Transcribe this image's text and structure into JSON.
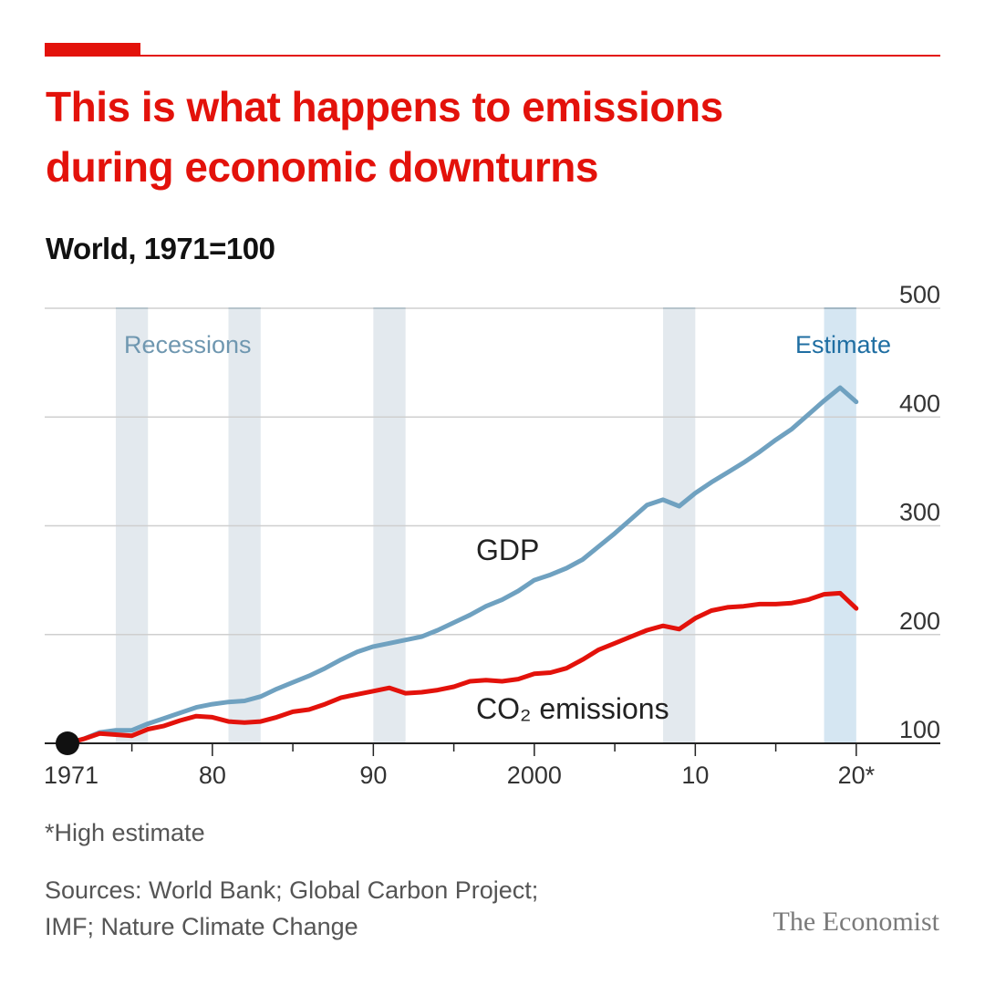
{
  "title_line1": "This is what happens to emissions",
  "title_line2": "during economic downturns",
  "subtitle": "World, 1971=100",
  "footnote": "*High estimate",
  "sources_line1": "Sources: World Bank; Global Carbon Project;",
  "sources_line2": "IMF; Nature Climate Change",
  "brand": "The Economist",
  "colors": {
    "accent": "#e3120b",
    "gdp": "#6fa1c0",
    "co2": "#e3120b",
    "recession_band": "#e3e9ee",
    "estimate_band": "#d5e6f2",
    "recession_label": "#6f97b0",
    "estimate_label": "#1f6ea2"
  },
  "chart_data": {
    "type": "line",
    "xlim": [
      1970,
      2021
    ],
    "ylim": [
      100,
      500
    ],
    "yticks": [
      100,
      200,
      300,
      400,
      500
    ],
    "xticks": [
      {
        "value": 1971,
        "label": "1971"
      },
      {
        "value": 1980,
        "label": "80"
      },
      {
        "value": 1990,
        "label": "90"
      },
      {
        "value": 2000,
        "label": "2000"
      },
      {
        "value": 2010,
        "label": "10"
      },
      {
        "value": 2020,
        "label": "20*"
      }
    ],
    "grid": true,
    "recessions_label": "Recessions",
    "recessions": [
      [
        1974,
        1976
      ],
      [
        1981,
        1983
      ],
      [
        1990,
        1992
      ],
      [
        2008,
        2010
      ]
    ],
    "estimate_label": "Estimate",
    "estimate": [
      2018,
      2020
    ],
    "start_marker": {
      "x": 1971,
      "y": 100
    },
    "series": [
      {
        "name": "GDP",
        "x": [
          1971,
          1972,
          1973,
          1974,
          1975,
          1976,
          1977,
          1978,
          1979,
          1980,
          1981,
          1982,
          1983,
          1984,
          1985,
          1986,
          1987,
          1988,
          1989,
          1990,
          1991,
          1992,
          1993,
          1994,
          1995,
          1996,
          1997,
          1998,
          1999,
          2000,
          2001,
          2002,
          2003,
          2004,
          2005,
          2006,
          2007,
          2008,
          2009,
          2010,
          2011,
          2012,
          2013,
          2014,
          2015,
          2016,
          2017,
          2018,
          2019,
          2020
        ],
        "y": [
          100,
          104,
          110,
          112,
          112,
          118,
          123,
          128,
          133,
          136,
          138,
          139,
          143,
          150,
          156,
          162,
          169,
          177,
          184,
          189,
          192,
          195,
          198,
          204,
          211,
          218,
          226,
          232,
          240,
          250,
          255,
          261,
          269,
          281,
          293,
          306,
          319,
          324,
          318,
          330,
          340,
          349,
          358,
          368,
          379,
          389,
          402,
          415,
          427,
          414
        ]
      },
      {
        "name": "CO₂ emissions",
        "x": [
          1971,
          1972,
          1973,
          1974,
          1975,
          1976,
          1977,
          1978,
          1979,
          1980,
          1981,
          1982,
          1983,
          1984,
          1985,
          1986,
          1987,
          1988,
          1989,
          1990,
          1991,
          1992,
          1993,
          1994,
          1995,
          1996,
          1997,
          1998,
          1999,
          2000,
          2001,
          2002,
          2003,
          2004,
          2005,
          2006,
          2007,
          2008,
          2009,
          2010,
          2011,
          2012,
          2013,
          2014,
          2015,
          2016,
          2017,
          2018,
          2019,
          2020
        ],
        "y": [
          100,
          104,
          109,
          108,
          107,
          113,
          116,
          121,
          125,
          124,
          120,
          119,
          120,
          124,
          129,
          131,
          136,
          142,
          145,
          148,
          151,
          146,
          147,
          149,
          152,
          157,
          158,
          157,
          159,
          164,
          165,
          169,
          177,
          186,
          192,
          198,
          204,
          208,
          205,
          215,
          222,
          225,
          226,
          228,
          228,
          229,
          232,
          237,
          238,
          224
        ]
      }
    ]
  }
}
